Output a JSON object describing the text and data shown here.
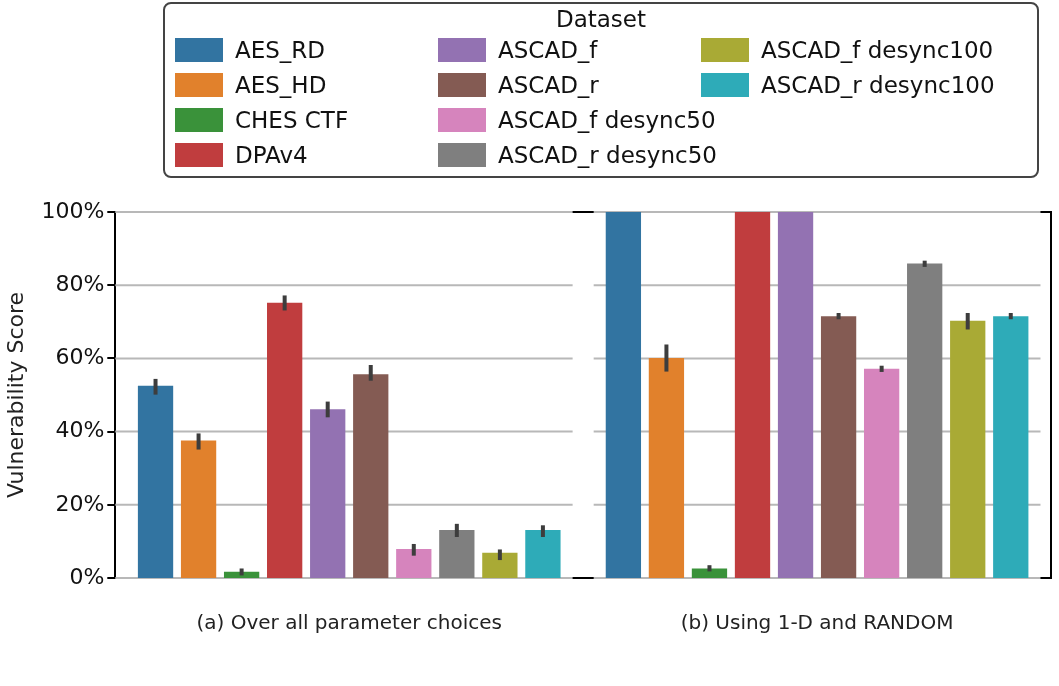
{
  "chart_data": {
    "type": "bar",
    "ylabel": "Vulnerability Score",
    "legend_title": "Dataset",
    "legend": "top",
    "grid": "y",
    "categories": [
      "(a) Over all parameter choices",
      "(b) Using 1-D and RANDOM"
    ],
    "ylim": [
      0,
      100
    ],
    "yticks": [
      {
        "value": 0,
        "label": "0%"
      },
      {
        "value": 20,
        "label": "20%"
      },
      {
        "value": 40,
        "label": "40%"
      },
      {
        "value": 60,
        "label": "60%"
      },
      {
        "value": 80,
        "label": "80%"
      },
      {
        "value": 100,
        "label": "100%"
      }
    ],
    "series": [
      {
        "name": "AES_RD",
        "color": "#3274a1",
        "values": [
          52.5,
          100
        ],
        "errors": [
          [
            50.1,
            54.4
          ],
          null
        ]
      },
      {
        "name": "AES_HD",
        "color": "#e1812c",
        "values": [
          37.6,
          60.1
        ],
        "errors": [
          [
            35.1,
            39.5
          ],
          [
            56.4,
            63.8
          ]
        ]
      },
      {
        "name": "CHES CTF",
        "color": "#3a923a",
        "values": [
          1.7,
          2.6
        ],
        "errors": [
          [
            0.7,
            2.6
          ],
          [
            1.8,
            3.5
          ]
        ]
      },
      {
        "name": "DPAv4",
        "color": "#c03d3e",
        "values": [
          75.2,
          100
        ],
        "errors": [
          [
            73.1,
            77.2
          ],
          null
        ]
      },
      {
        "name": "ASCAD_f",
        "color": "#9372b2",
        "values": [
          46.1,
          100
        ],
        "errors": [
          [
            43.9,
            48.2
          ],
          null
        ]
      },
      {
        "name": "ASCAD_r",
        "color": "#845b53",
        "values": [
          55.7,
          71.5
        ],
        "errors": [
          [
            53.9,
            58.2
          ],
          [
            70.7,
            72.4
          ]
        ]
      },
      {
        "name": "ASCAD_f desync50",
        "color": "#d684bd",
        "values": [
          7.9,
          57.2
        ],
        "errors": [
          [
            6.1,
            9.3
          ],
          [
            56.3,
            58.0
          ]
        ]
      },
      {
        "name": "ASCAD_r desync50",
        "color": "#7f7f7f",
        "values": [
          13.1,
          85.9
        ],
        "errors": [
          [
            11.2,
            14.8
          ],
          [
            85.0,
            86.7
          ]
        ]
      },
      {
        "name": "ASCAD_f desync100",
        "color": "#a9aa35",
        "values": [
          6.9,
          70.3
        ],
        "errors": [
          [
            4.9,
            7.8
          ],
          [
            67.9,
            72.4
          ]
        ]
      },
      {
        "name": "ASCAD_r desync100",
        "color": "#2eabb8",
        "values": [
          13.1,
          71.5
        ],
        "errors": [
          [
            11.2,
            14.4
          ],
          [
            70.7,
            72.4
          ]
        ]
      }
    ]
  }
}
